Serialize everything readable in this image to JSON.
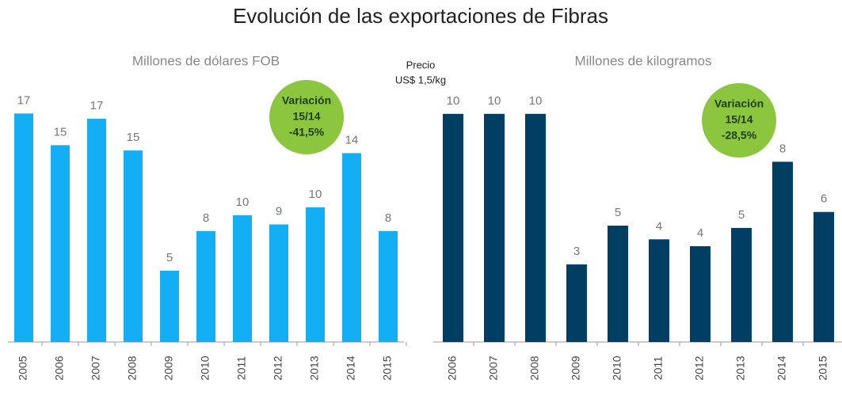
{
  "title": "Evolución de las exportaciones de Fibras",
  "annotation": [
    "Precio",
    "US$ 1,5/kg"
  ],
  "chart_data": [
    {
      "type": "bar",
      "subtitle": "Millones de dólares FOB",
      "categories": [
        "2005",
        "2006",
        "2007",
        "2008",
        "2009",
        "2010",
        "2011",
        "2012",
        "2013",
        "2014",
        "2015"
      ],
      "values": [
        17.3,
        14.9,
        16.9,
        14.5,
        5.4,
        8.4,
        9.6,
        8.9,
        10.2,
        14.3,
        8.4
      ],
      "value_labels": [
        "17",
        "15",
        "17",
        "15",
        "5",
        "8",
        "10",
        "9",
        "10",
        "14",
        "8"
      ],
      "color": "#14aef5",
      "ylim": [
        0,
        19
      ],
      "badge": [
        "Variación",
        "15/14",
        "-41,5%"
      ],
      "badge_color": "#8cc63f"
    },
    {
      "type": "bar",
      "subtitle": "Millones de kilogramos",
      "categories": [
        "2006",
        "2007",
        "2008",
        "2009",
        "2010",
        "2011",
        "2012",
        "2013",
        "2014",
        "2015"
      ],
      "values": [
        10.0,
        10.0,
        10.0,
        3.4,
        5.1,
        4.5,
        4.2,
        5.0,
        7.9,
        5.7
      ],
      "value_labels": [
        "10",
        "10",
        "10",
        "3",
        "5",
        "4",
        "4",
        "5",
        "8",
        "6"
      ],
      "color": "#003f63",
      "ylim": [
        0,
        11
      ],
      "badge": [
        "Variación",
        "15/14",
        "-28,5%"
      ],
      "badge_color": "#8cc63f"
    }
  ]
}
